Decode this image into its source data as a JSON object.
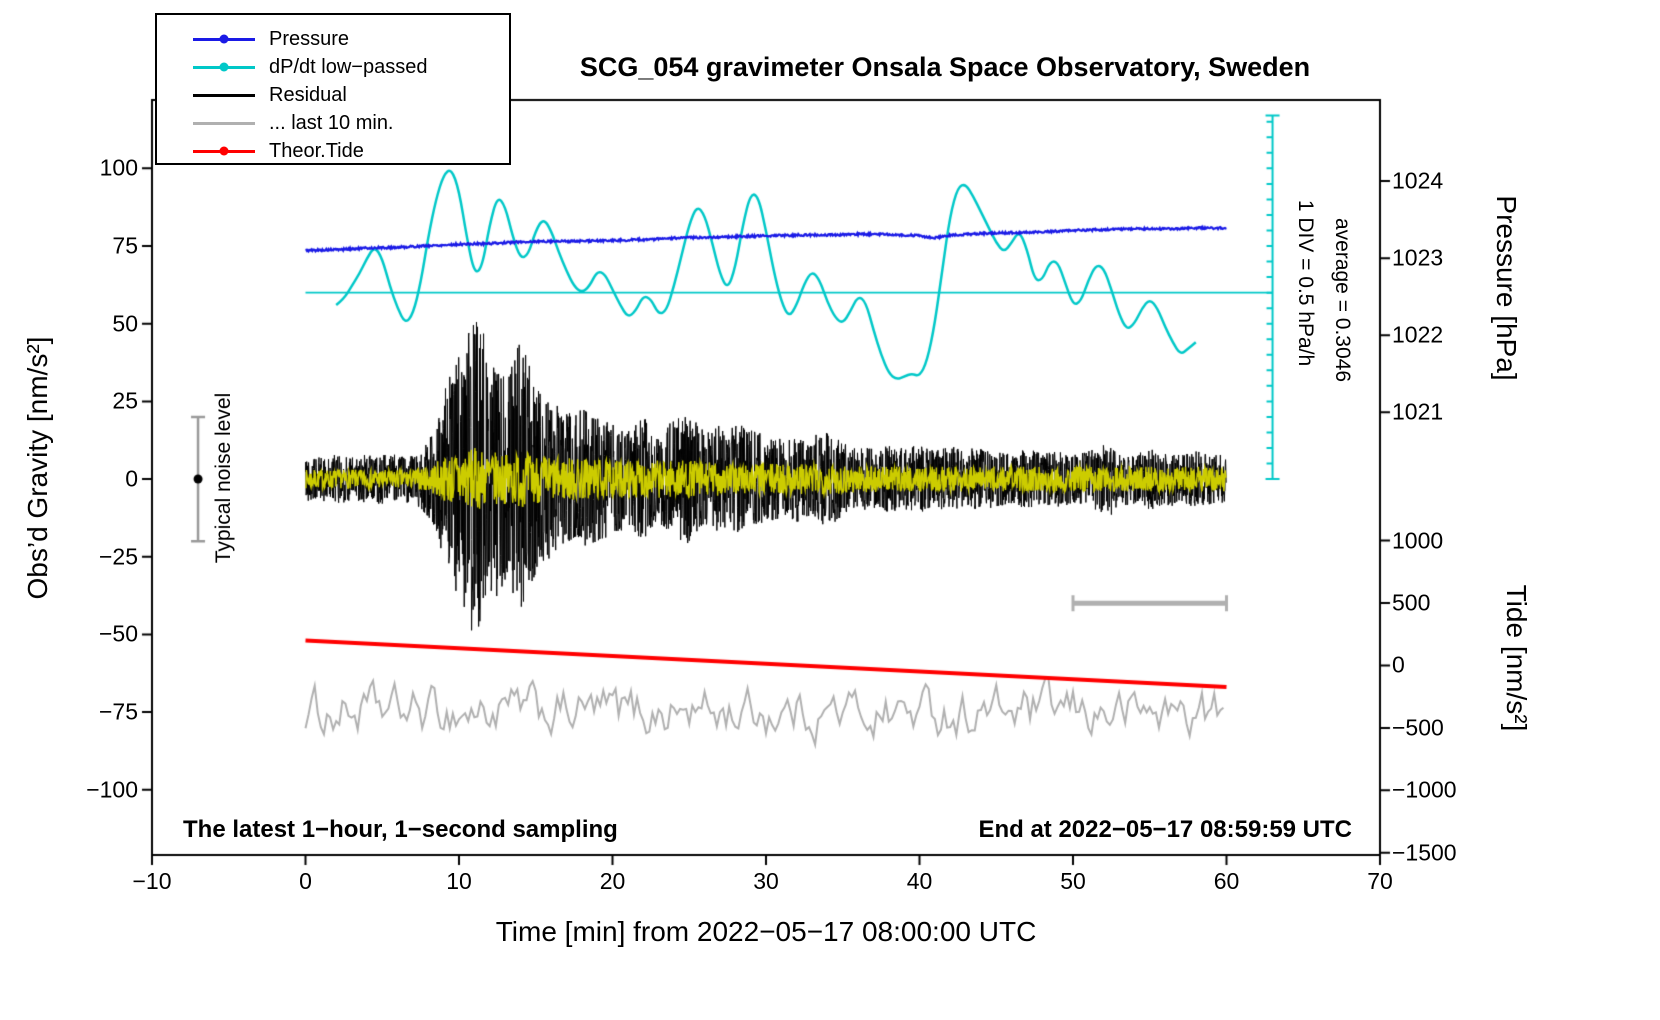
{
  "chart_data": {
    "type": "line",
    "title": "SCG_054 gravimeter Onsala Space Observatory, Sweden",
    "xlabel": "Time [min] from 2022−05−17 08:00:00 UTC",
    "ylabel": "Obs’d Gravity [nm/s²]",
    "y2label_pressure": "Pressure [hPa]",
    "y2label_tide": "Tide [nm/s²]",
    "footer_left": "The latest 1−hour, 1−second sampling",
    "footer_right": "End at 2022−05−17 08:59:59 UTC",
    "annotations": {
      "div_note": "1 DIV = 0.5 hPa/h",
      "average_note": "average = 0.3046",
      "noise_label": "Typical noise level"
    },
    "xlim": [
      -10,
      70
    ],
    "ylim": [
      -121,
      122
    ],
    "xticks": [
      -10,
      0,
      10,
      20,
      30,
      40,
      50,
      60,
      70
    ],
    "yticks": [
      -100,
      -75,
      -50,
      -25,
      0,
      25,
      50,
      75,
      100
    ],
    "pressure_ticks": [
      1024,
      1023,
      1022,
      1021
    ],
    "tide_ticks": [
      1000,
      500,
      0,
      -500,
      -1000,
      -1500
    ],
    "pressure_axis_map": {
      "hpa_ref": 1023,
      "gravity_at_ref": 71.1,
      "gravity_per_hpa": 24.8
    },
    "tide_axis_map": {
      "gravity_at_zero": -60,
      "gravity_per_unit": 0.0402
    },
    "legend": {
      "items": [
        {
          "label": "Pressure",
          "color": "#1a1ae6",
          "dot": true
        },
        {
          "label": "dP/dt low−passed",
          "color": "#00c8c8",
          "dot": true
        },
        {
          "label": "Residual",
          "color": "#000000",
          "dot": false
        },
        {
          "label": "... last 10 min.",
          "color": "#b0b0b0",
          "dot": false
        },
        {
          "label": "Theor.Tide",
          "color": "#ff0000",
          "dot": true
        }
      ]
    },
    "series": {
      "pressure_hpa": {
        "name": "Pressure",
        "color": "#1a1ae6",
        "points": [
          [
            0,
            1023.1
          ],
          [
            2,
            1023.11
          ],
          [
            4,
            1023.13
          ],
          [
            6,
            1023.14
          ],
          [
            8,
            1023.16
          ],
          [
            10,
            1023.18
          ],
          [
            12,
            1023.19
          ],
          [
            14,
            1023.21
          ],
          [
            16,
            1023.22
          ],
          [
            18,
            1023.22
          ],
          [
            20,
            1023.23
          ],
          [
            22,
            1023.24
          ],
          [
            24,
            1023.26
          ],
          [
            26,
            1023.27
          ],
          [
            28,
            1023.28
          ],
          [
            30,
            1023.29
          ],
          [
            32,
            1023.3
          ],
          [
            34,
            1023.3
          ],
          [
            36,
            1023.31
          ],
          [
            38,
            1023.31
          ],
          [
            40,
            1023.29
          ],
          [
            41,
            1023.26
          ],
          [
            42,
            1023.3
          ],
          [
            44,
            1023.32
          ],
          [
            46,
            1023.33
          ],
          [
            48,
            1023.34
          ],
          [
            50,
            1023.36
          ],
          [
            52,
            1023.37
          ],
          [
            54,
            1023.38
          ],
          [
            56,
            1023.38
          ],
          [
            58,
            1023.39
          ],
          [
            60,
            1023.39
          ]
        ]
      },
      "dpdt": {
        "name": "dP/dt low−passed",
        "color": "#00c8c8",
        "average_level_gravity": 60,
        "points": [
          [
            2,
            56
          ],
          [
            2.5,
            58
          ],
          [
            3,
            62
          ],
          [
            3.5,
            66
          ],
          [
            4,
            71
          ],
          [
            4.5,
            75
          ],
          [
            5,
            71
          ],
          [
            5.5,
            62
          ],
          [
            6,
            55
          ],
          [
            6.5,
            50
          ],
          [
            7,
            53
          ],
          [
            7.5,
            63
          ],
          [
            8,
            78
          ],
          [
            8.5,
            90
          ],
          [
            9,
            98
          ],
          [
            9.5,
            100
          ],
          [
            10,
            93
          ],
          [
            10.5,
            78
          ],
          [
            11,
            66
          ],
          [
            11.5,
            68
          ],
          [
            12,
            82
          ],
          [
            12.5,
            91
          ],
          [
            13,
            88
          ],
          [
            13.5,
            78
          ],
          [
            14,
            71
          ],
          [
            14.5,
            72
          ],
          [
            15,
            80
          ],
          [
            15.5,
            84
          ],
          [
            16,
            80
          ],
          [
            16.5,
            73
          ],
          [
            17,
            67
          ],
          [
            17.5,
            62
          ],
          [
            18,
            60
          ],
          [
            18.5,
            62
          ],
          [
            19,
            67
          ],
          [
            19.5,
            66
          ],
          [
            20,
            61
          ],
          [
            20.5,
            56
          ],
          [
            21,
            52
          ],
          [
            21.5,
            54
          ],
          [
            22,
            59
          ],
          [
            22.5,
            58
          ],
          [
            23,
            53
          ],
          [
            23.5,
            54
          ],
          [
            24,
            62
          ],
          [
            24.5,
            72
          ],
          [
            25,
            82
          ],
          [
            25.5,
            88
          ],
          [
            26,
            85
          ],
          [
            26.5,
            76
          ],
          [
            27,
            66
          ],
          [
            27.5,
            61
          ],
          [
            28,
            68
          ],
          [
            28.5,
            82
          ],
          [
            29,
            92
          ],
          [
            29.5,
            91
          ],
          [
            30,
            80
          ],
          [
            30.5,
            67
          ],
          [
            31,
            57
          ],
          [
            31.5,
            52
          ],
          [
            32,
            56
          ],
          [
            32.5,
            63
          ],
          [
            33,
            67
          ],
          [
            33.5,
            64
          ],
          [
            34,
            57
          ],
          [
            34.5,
            52
          ],
          [
            35,
            50
          ],
          [
            35.5,
            54
          ],
          [
            36,
            59
          ],
          [
            36.5,
            57
          ],
          [
            37,
            48
          ],
          [
            37.5,
            40
          ],
          [
            38,
            34
          ],
          [
            38.5,
            32
          ],
          [
            39,
            33
          ],
          [
            39.5,
            34
          ],
          [
            40,
            33
          ],
          [
            40.5,
            38
          ],
          [
            41,
            50
          ],
          [
            41.5,
            68
          ],
          [
            42,
            85
          ],
          [
            42.5,
            94
          ],
          [
            43,
            95
          ],
          [
            43.5,
            91
          ],
          [
            44,
            86
          ],
          [
            44.5,
            81
          ],
          [
            45,
            76
          ],
          [
            45.5,
            73
          ],
          [
            46,
            76
          ],
          [
            46.5,
            80
          ],
          [
            47,
            74
          ],
          [
            47.5,
            64
          ],
          [
            48,
            64
          ],
          [
            48.5,
            70
          ],
          [
            49,
            70
          ],
          [
            49.5,
            63
          ],
          [
            50,
            56
          ],
          [
            50.5,
            57
          ],
          [
            51,
            64
          ],
          [
            51.5,
            69
          ],
          [
            52,
            68
          ],
          [
            52.5,
            61
          ],
          [
            53,
            53
          ],
          [
            53.5,
            48
          ],
          [
            54,
            50
          ],
          [
            54.5,
            55
          ],
          [
            55,
            58
          ],
          [
            55.5,
            55
          ],
          [
            56,
            49
          ],
          [
            56.5,
            44
          ],
          [
            57,
            40
          ],
          [
            57.5,
            42
          ],
          [
            58,
            44
          ]
        ]
      },
      "residual": {
        "name": "Residual",
        "color": "#000000",
        "envelope": [
          [
            0,
            7
          ],
          [
            1,
            7
          ],
          [
            2,
            8
          ],
          [
            3,
            7
          ],
          [
            4,
            8
          ],
          [
            5,
            8
          ],
          [
            6,
            7
          ],
          [
            7,
            8
          ],
          [
            8,
            12
          ],
          [
            8.5,
            18
          ],
          [
            9,
            28
          ],
          [
            9.5,
            36
          ],
          [
            10,
            40
          ],
          [
            10.5,
            46
          ],
          [
            11,
            55
          ],
          [
            11.5,
            50
          ],
          [
            12,
            42
          ],
          [
            12.5,
            38
          ],
          [
            13,
            34
          ],
          [
            13.5,
            38
          ],
          [
            14,
            45
          ],
          [
            14.5,
            38
          ],
          [
            15,
            30
          ],
          [
            16,
            26
          ],
          [
            17,
            21
          ],
          [
            18,
            23
          ],
          [
            19,
            20
          ],
          [
            20,
            18
          ],
          [
            21,
            16
          ],
          [
            22,
            20
          ],
          [
            23,
            15
          ],
          [
            24,
            19
          ],
          [
            25,
            21
          ],
          [
            26,
            15
          ],
          [
            27,
            17
          ],
          [
            28,
            18
          ],
          [
            29,
            16
          ],
          [
            30,
            14
          ],
          [
            31,
            13
          ],
          [
            32,
            14
          ],
          [
            33,
            12
          ],
          [
            34,
            16
          ],
          [
            35,
            12
          ],
          [
            36,
            10
          ],
          [
            37,
            10
          ],
          [
            38,
            11
          ],
          [
            39,
            10
          ],
          [
            40,
            11
          ],
          [
            41,
            9
          ],
          [
            42,
            11
          ],
          [
            43,
            9
          ],
          [
            44,
            10
          ],
          [
            45,
            9
          ],
          [
            46,
            8
          ],
          [
            47,
            10
          ],
          [
            48,
            8
          ],
          [
            49,
            9
          ],
          [
            50,
            8
          ],
          [
            51,
            9
          ],
          [
            52,
            11
          ],
          [
            53,
            9
          ],
          [
            54,
            8
          ],
          [
            55,
            10
          ],
          [
            56,
            9
          ],
          [
            57,
            8
          ],
          [
            58,
            9
          ],
          [
            59,
            8
          ],
          [
            60,
            8
          ]
        ]
      },
      "residual_smoothed": {
        "name": "Residual smoothed",
        "color": "#cccc00",
        "envelope": [
          [
            0,
            3
          ],
          [
            7,
            3
          ],
          [
            8,
            4
          ],
          [
            9,
            7
          ],
          [
            10,
            9
          ],
          [
            11,
            10
          ],
          [
            12,
            9
          ],
          [
            13,
            8
          ],
          [
            14,
            9
          ],
          [
            15,
            8
          ],
          [
            16,
            7
          ],
          [
            18,
            7
          ],
          [
            20,
            6
          ],
          [
            22,
            6
          ],
          [
            25,
            6
          ],
          [
            28,
            5
          ],
          [
            30,
            5
          ],
          [
            34,
            5
          ],
          [
            38,
            4
          ],
          [
            42,
            4
          ],
          [
            46,
            4
          ],
          [
            50,
            4
          ],
          [
            54,
            4
          ],
          [
            58,
            4
          ],
          [
            60,
            4
          ]
        ]
      },
      "last10": {
        "name": "... last 10 min.",
        "color": "#b0b0b0",
        "center": -75,
        "xrange": [
          0,
          60
        ]
      },
      "tide": {
        "name": "Theor.Tide",
        "color": "#ff0000",
        "points_tide_units": [
          [
            0,
            200
          ],
          [
            30,
            14
          ],
          [
            60,
            -172
          ]
        ]
      }
    },
    "noise_marker": {
      "x": -7,
      "center": 0,
      "half_height": 20
    },
    "last10_scalebar": {
      "x1": 50,
      "x2": 60,
      "y": -40
    },
    "dpdt_axis": {
      "x": 63,
      "g_top": 117,
      "g_bottom": 0,
      "tick_step_gravity": 5
    }
  }
}
